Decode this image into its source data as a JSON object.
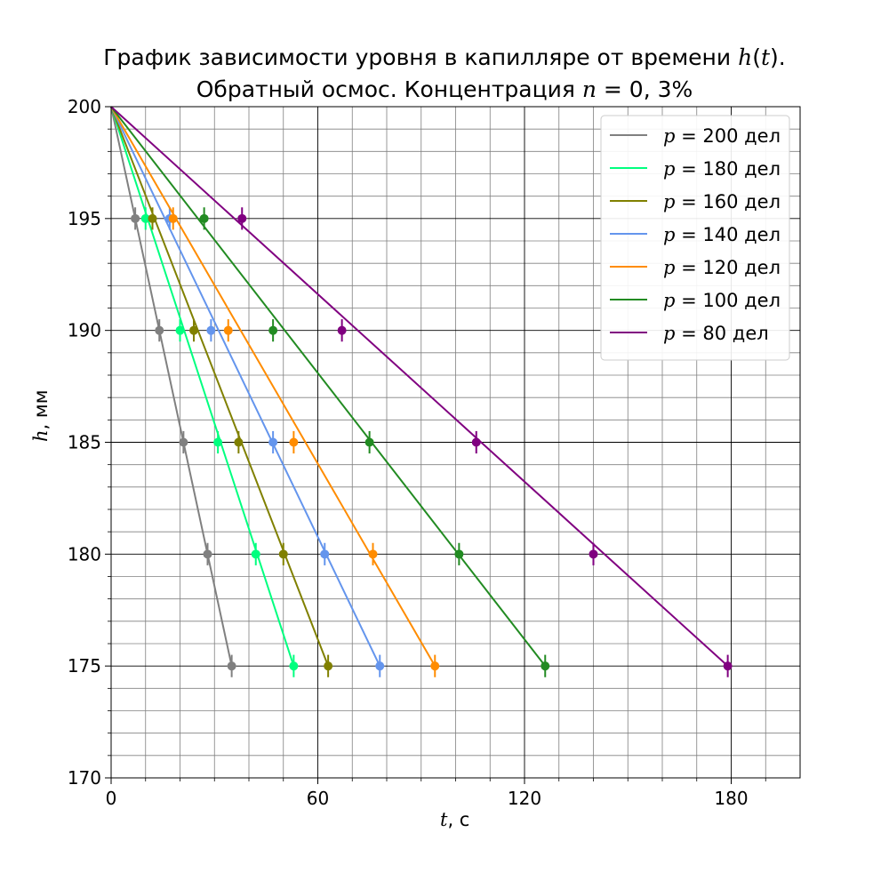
{
  "title": {
    "line1_prefix": "График зависимости уровня в капилляре от времени ",
    "line1_var": "h",
    "line1_paren_open": "(",
    "line1_arg": "t",
    "line1_suffix": ").",
    "line2_prefix": "Обратный осмос. Концентрация ",
    "line2_var": "n",
    "line2_eq": " = 0, 3%"
  },
  "xlabel": {
    "var": "t",
    "unit": ", с"
  },
  "ylabel": {
    "var": "h",
    "unit": ", мм"
  },
  "colors": {
    "p200": "#808080",
    "p180": "#00ff7f",
    "p160": "#808000",
    "p140": "#6495ed",
    "p120": "#ff8c00",
    "p100": "#228b22",
    "p80": "#800080"
  },
  "chart_data": {
    "type": "scatter",
    "title": "График зависимости уровня в капилляре от времени h(t). Обратный осмос. Концентрация n = 0, 3%",
    "xlabel": "t, с",
    "ylabel": "h, мм",
    "xlim": [
      0,
      200
    ],
    "ylim": [
      170,
      200
    ],
    "xticks": [
      0,
      60,
      120,
      180
    ],
    "yticks": [
      170,
      175,
      180,
      185,
      190,
      195,
      200
    ],
    "x_minor_step": 10,
    "y_minor_step": 1,
    "grid": true,
    "legend_position": "top-right",
    "y_error": 0.5,
    "series": [
      {
        "name": "p = 200 дел",
        "p": "200",
        "color": "#808080",
        "points": [
          [
            7,
            195
          ],
          [
            14,
            190
          ],
          [
            21,
            185
          ],
          [
            28,
            180
          ],
          [
            35,
            175
          ]
        ],
        "fit": [
          [
            0,
            200
          ],
          [
            35,
            175
          ]
        ]
      },
      {
        "name": "p = 180 дел",
        "p": "180",
        "color": "#00ff7f",
        "points": [
          [
            10,
            195
          ],
          [
            20,
            190
          ],
          [
            31,
            185
          ],
          [
            42,
            180
          ],
          [
            53,
            175
          ]
        ],
        "fit": [
          [
            0,
            200
          ],
          [
            53,
            175
          ]
        ]
      },
      {
        "name": "p = 160 дел",
        "p": "160",
        "color": "#808000",
        "points": [
          [
            12,
            195
          ],
          [
            24,
            190
          ],
          [
            37,
            185
          ],
          [
            50,
            180
          ],
          [
            63,
            175
          ]
        ],
        "fit": [
          [
            0,
            200
          ],
          [
            63,
            175
          ]
        ]
      },
      {
        "name": "p = 140 дел",
        "p": "140",
        "color": "#6495ed",
        "points": [
          [
            17,
            195
          ],
          [
            29,
            190
          ],
          [
            47,
            185
          ],
          [
            62,
            180
          ],
          [
            78,
            175
          ]
        ],
        "fit": [
          [
            0,
            200
          ],
          [
            78,
            175
          ]
        ]
      },
      {
        "name": "p = 120 дел",
        "p": "120",
        "color": "#ff8c00",
        "points": [
          [
            18,
            195
          ],
          [
            34,
            190
          ],
          [
            53,
            185
          ],
          [
            76,
            180
          ],
          [
            94,
            175
          ]
        ],
        "fit": [
          [
            0,
            200
          ],
          [
            94,
            175
          ]
        ]
      },
      {
        "name": "p = 100 дел",
        "p": "100",
        "color": "#228b22",
        "points": [
          [
            27,
            195
          ],
          [
            47,
            190
          ],
          [
            75,
            185
          ],
          [
            101,
            180
          ],
          [
            126,
            175
          ]
        ],
        "fit": [
          [
            0,
            200
          ],
          [
            126,
            175
          ]
        ]
      },
      {
        "name": "p = 80 дел",
        "p": "80",
        "color": "#800080",
        "points": [
          [
            38,
            195
          ],
          [
            67,
            190
          ],
          [
            106,
            185
          ],
          [
            140,
            180
          ],
          [
            179,
            175
          ]
        ],
        "fit": [
          [
            0,
            200
          ],
          [
            179,
            175
          ]
        ]
      }
    ]
  }
}
